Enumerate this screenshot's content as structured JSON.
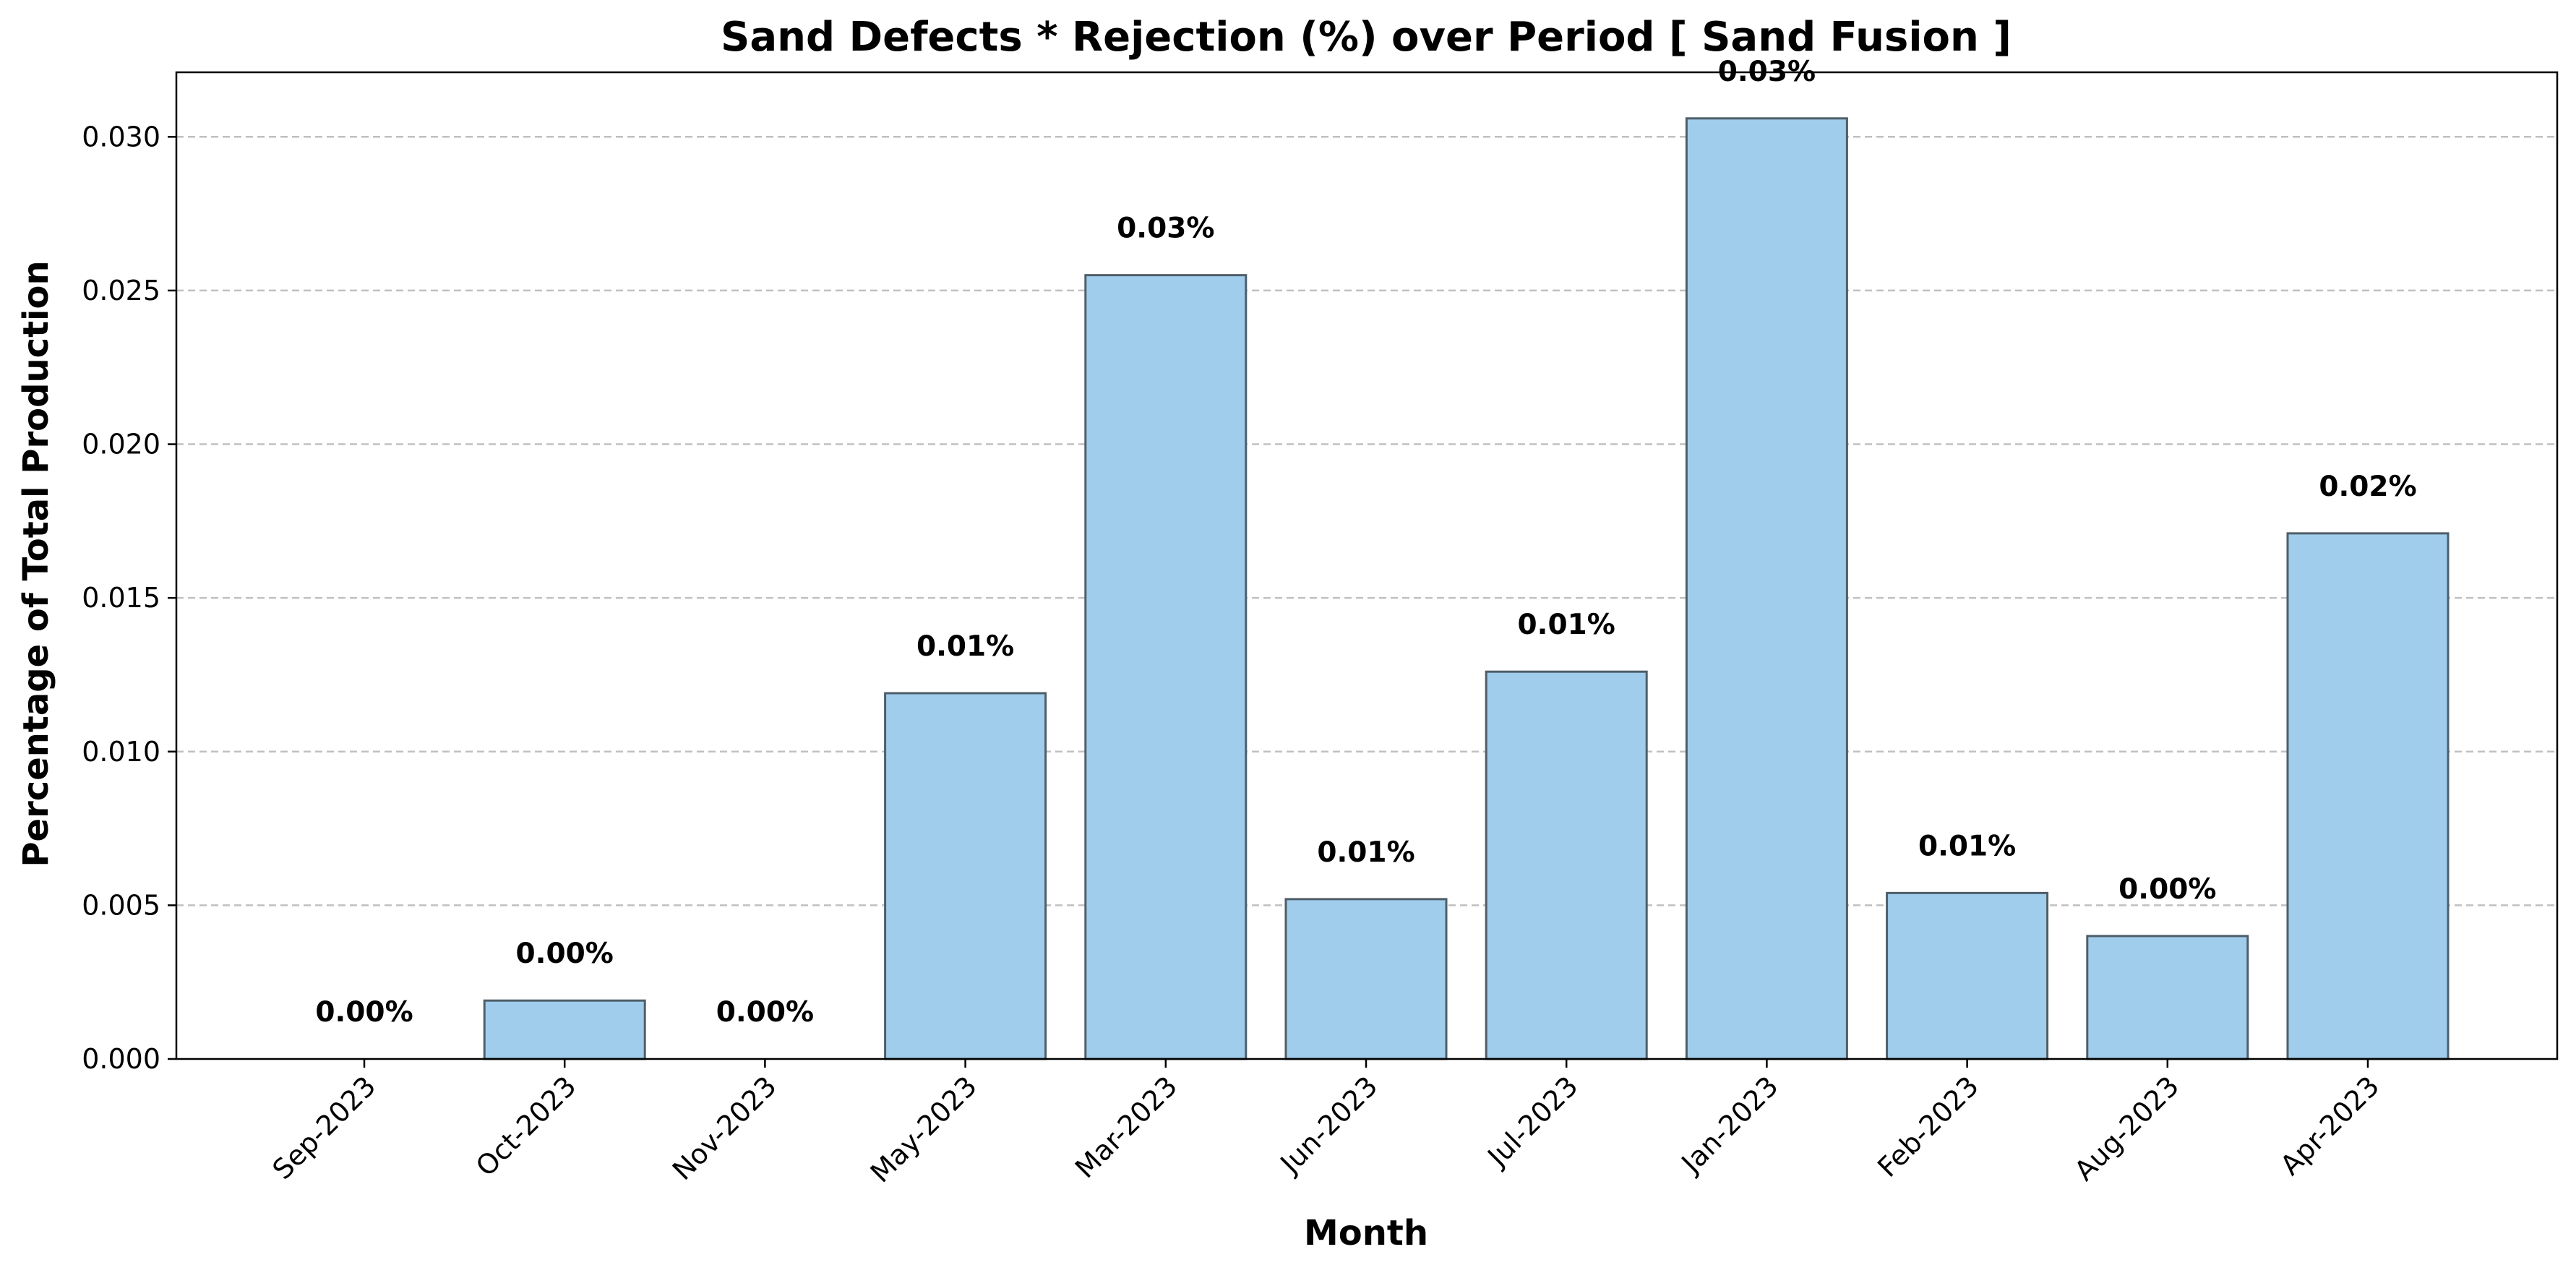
{
  "chart_data": {
    "type": "bar",
    "title": "Sand Defects * Rejection (%) over Period [ Sand Fusion ]",
    "xlabel": "Month",
    "ylabel": "Percentage of Total Production",
    "categories": [
      "Sep-2023",
      "Oct-2023",
      "Nov-2023",
      "May-2023",
      "Mar-2023",
      "Jun-2023",
      "Jul-2023",
      "Jan-2023",
      "Feb-2023",
      "Aug-2023",
      "Apr-2023"
    ],
    "values": [
      0.0,
      0.0019,
      0.0,
      0.0119,
      0.0255,
      0.0052,
      0.0126,
      0.0306,
      0.0054,
      0.004,
      0.0171
    ],
    "data_labels": [
      "0.00%",
      "0.00%",
      "0.00%",
      "0.01%",
      "0.03%",
      "0.01%",
      "0.01%",
      "0.03%",
      "0.01%",
      "0.00%",
      "0.02%"
    ],
    "ylim": [
      0,
      0.0321
    ],
    "yticks": [
      0.0,
      0.005,
      0.01,
      0.015,
      0.02,
      0.025,
      0.03
    ],
    "ytick_labels": [
      "0.000",
      "0.005",
      "0.010",
      "0.015",
      "0.020",
      "0.025",
      "0.030"
    ],
    "grid": "y-dashed",
    "bar_color": "#a0cdec",
    "bar_edge_color": "#4f5e69",
    "grid_color": "#c0c0c0"
  }
}
